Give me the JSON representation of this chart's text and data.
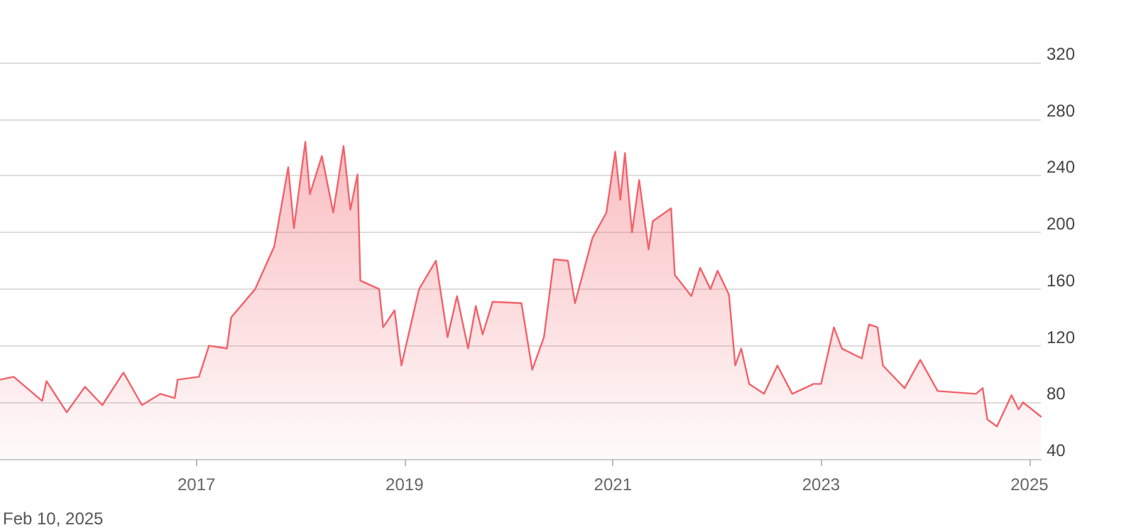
{
  "chart_data": {
    "type": "area",
    "color": "#f2636b",
    "x": [
      "2015-02-12",
      "2015-04-01",
      "2015-07-10",
      "2015-07-25",
      "2015-10-04",
      "2015-12-07",
      "2016-02-06",
      "2016-04-20",
      "2016-06-24",
      "2016-08-28",
      "2016-10-17",
      "2016-10-27",
      "2017-01-10",
      "2017-02-14",
      "2017-04-18",
      "2017-05-03",
      "2017-07-26",
      "2017-10-01",
      "2017-11-19",
      "2017-12-09",
      "2018-01-18",
      "2018-02-03",
      "2018-03-17",
      "2018-04-26",
      "2018-06-01",
      "2018-06-25",
      "2018-07-20",
      "2018-07-30",
      "2018-10-04",
      "2018-10-18",
      "2018-11-27",
      "2018-12-21",
      "2019-02-21",
      "2019-04-21",
      "2019-06-01",
      "2019-07-04",
      "2019-08-12",
      "2019-09-08",
      "2019-10-02",
      "2019-11-06",
      "2020-02-15",
      "2020-03-24",
      "2020-05-04",
      "2020-06-08",
      "2020-07-27",
      "2020-08-21",
      "2020-10-21",
      "2020-12-09",
      "2021-01-09",
      "2021-01-27",
      "2021-02-12",
      "2021-03-09",
      "2021-04-03",
      "2021-05-06",
      "2021-05-21",
      "2021-07-24",
      "2021-08-06",
      "2021-10-03",
      "2021-11-03",
      "2021-12-09",
      "2022-01-03",
      "2022-02-12",
      "2022-03-06",
      "2022-03-27",
      "2022-04-24",
      "2022-06-15",
      "2022-08-01",
      "2022-09-22",
      "2022-12-06",
      "2023-01-01",
      "2023-02-15",
      "2023-03-15",
      "2023-05-24",
      "2023-06-18",
      "2023-07-18",
      "2023-08-06",
      "2023-10-21",
      "2023-12-15",
      "2024-02-14",
      "2024-06-27",
      "2024-07-21",
      "2024-08-06",
      "2024-09-09",
      "2024-10-30",
      "2024-11-24",
      "2024-12-09",
      "2025-02-10"
    ],
    "values": [
      96,
      98,
      81,
      95,
      73,
      91,
      78,
      101,
      78,
      86,
      83,
      96,
      98,
      120,
      118,
      140,
      160,
      190,
      246,
      203,
      264,
      227,
      254,
      214,
      261,
      216,
      241,
      166,
      160,
      133,
      145,
      106,
      160,
      180,
      126,
      155,
      118,
      148,
      128,
      151,
      150,
      103,
      126,
      181,
      180,
      150,
      196,
      214,
      257,
      223,
      256,
      200,
      237,
      188,
      208,
      217,
      170,
      155,
      175,
      160,
      173,
      156,
      106,
      118,
      93,
      86,
      106,
      86,
      93,
      93,
      133,
      118,
      111,
      135,
      133,
      106,
      90,
      110,
      88,
      86,
      90,
      68,
      63,
      85,
      75,
      80,
      70
    ],
    "xlim": [
      "2015-02-12",
      "2025-02-10"
    ],
    "xticks": [
      "2017",
      "2019",
      "2021",
      "2023",
      "2025"
    ],
    "ylim": [
      40,
      320
    ],
    "yticks": [
      40,
      80,
      120,
      160,
      200,
      240,
      280,
      320
    ],
    "grid": "y",
    "marker": "none",
    "line_style": "solid",
    "annotations": [
      "Feb 10, 2025"
    ]
  }
}
